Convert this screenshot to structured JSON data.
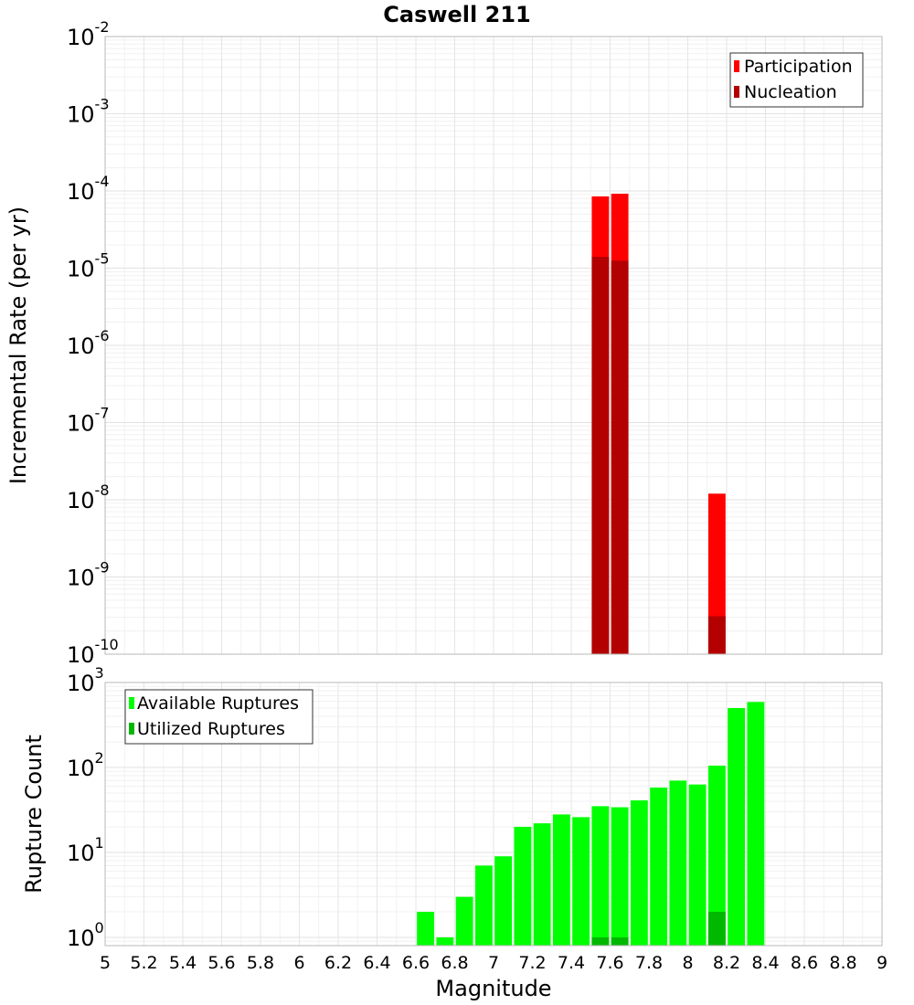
{
  "chart_data": [
    {
      "type": "bar",
      "title": "Caswell 211",
      "ylabel": "Incremental Rate (per yr)",
      "xlabel": "",
      "xlim": [
        5,
        9
      ],
      "ylim": [
        1e-10,
        0.01
      ],
      "yscale": "log",
      "ytick_exponents": [
        "-10",
        "-9",
        "-8",
        "-7",
        "-6",
        "-5",
        "-4",
        "-3",
        "-2"
      ],
      "legend_position": "top-right",
      "grid": true,
      "bin_width": 0.1,
      "series": [
        {
          "name": "Participation",
          "color": "#ff0000",
          "x": [
            7.55,
            7.65,
            8.15
          ],
          "values": [
            8.5e-05,
            9.2e-05,
            1.2e-08
          ]
        },
        {
          "name": "Nucleation",
          "color": "#b30000",
          "x": [
            7.55,
            7.65,
            8.15
          ],
          "values": [
            1.4e-05,
            1.25e-05,
            3.1e-10
          ]
        }
      ]
    },
    {
      "type": "bar",
      "title": "",
      "ylabel": "Rupture Count",
      "xlabel": "Magnitude",
      "xlim": [
        5,
        9
      ],
      "ylim": [
        0.8,
        1000
      ],
      "yscale": "log",
      "ytick_exponents": [
        "0",
        "1",
        "2",
        "3"
      ],
      "legend_position": "top-left",
      "grid": true,
      "bin_width": 0.1,
      "xticks": [
        "5",
        "5.2",
        "5.4",
        "5.6",
        "5.8",
        "6",
        "6.2",
        "6.4",
        "6.6",
        "6.8",
        "7",
        "7.2",
        "7.4",
        "7.6",
        "7.8",
        "8",
        "8.2",
        "8.4",
        "8.6",
        "8.8",
        "9"
      ],
      "series": [
        {
          "name": "Available Ruptures",
          "color": "#00ff00",
          "x": [
            6.65,
            6.75,
            6.85,
            6.95,
            7.05,
            7.15,
            7.25,
            7.35,
            7.45,
            7.55,
            7.65,
            7.75,
            7.85,
            7.95,
            8.05,
            8.15,
            8.25,
            8.35
          ],
          "values": [
            2,
            1,
            3,
            7,
            9,
            20,
            22,
            28,
            26,
            35,
            34,
            41,
            58,
            70,
            63,
            105,
            500,
            590
          ]
        },
        {
          "name": "Utilized Ruptures",
          "color": "#00b800",
          "x": [
            7.55,
            7.65,
            8.15
          ],
          "values": [
            1,
            1,
            2
          ]
        }
      ]
    }
  ]
}
